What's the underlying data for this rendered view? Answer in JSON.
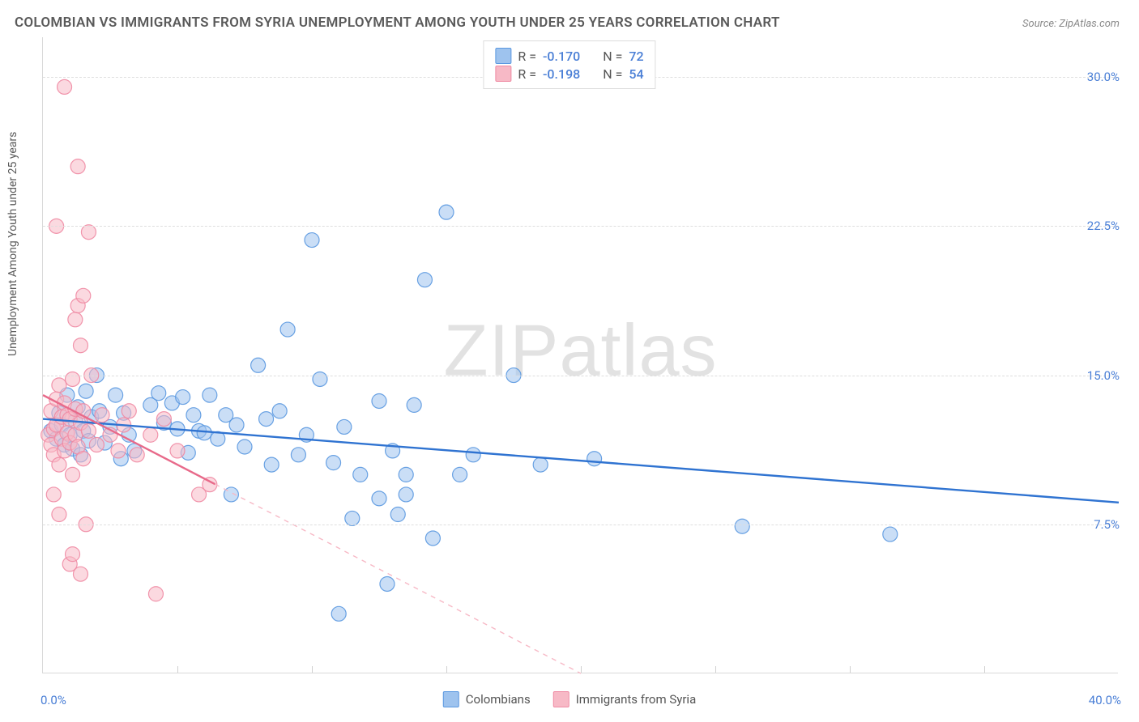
{
  "title": "COLOMBIAN VS IMMIGRANTS FROM SYRIA UNEMPLOYMENT AMONG YOUTH UNDER 25 YEARS CORRELATION CHART",
  "source": "Source: ZipAtlas.com",
  "ylabel": "Unemployment Among Youth under 25 years",
  "watermark_a": "ZIP",
  "watermark_b": "atlas",
  "chart": {
    "type": "scatter",
    "xlim": [
      0,
      40
    ],
    "ylim": [
      0,
      32
    ],
    "y_ticks": [
      7.5,
      15.0,
      22.5,
      30.0
    ],
    "y_tick_labels": [
      "7.5%",
      "15.0%",
      "22.5%",
      "30.0%"
    ],
    "x_origin_label": "0.0%",
    "x_max_label": "40.0%",
    "x_minor_ticks": [
      5,
      10,
      15,
      20,
      25,
      30,
      35
    ],
    "background": "#ffffff",
    "grid_color": "#dedede",
    "axis_color": "#d9d9d9",
    "tick_label_color": "#4a7fd6",
    "marker_radius": 9,
    "marker_opacity": 0.55,
    "marker_stroke_opacity": 0.9,
    "line_width": 2.4
  },
  "series": [
    {
      "name": "Colombians",
      "color_fill": "#9ec3ee",
      "color_stroke": "#5a98e0",
      "line_color": "#2f73d1",
      "R": "-0.170",
      "N": "72",
      "trend": {
        "x1": 0,
        "y1": 12.8,
        "x2": 40,
        "y2": 8.6,
        "solid_until_x": 40
      },
      "points": [
        [
          0.3,
          12.2
        ],
        [
          0.5,
          11.8
        ],
        [
          0.6,
          13.1
        ],
        [
          0.7,
          12.5
        ],
        [
          0.8,
          11.5
        ],
        [
          0.9,
          14.0
        ],
        [
          1.0,
          12.0
        ],
        [
          1.1,
          11.3
        ],
        [
          1.2,
          12.7
        ],
        [
          1.3,
          13.4
        ],
        [
          1.4,
          11.0
        ],
        [
          1.5,
          12.2
        ],
        [
          1.6,
          14.2
        ],
        [
          1.7,
          11.7
        ],
        [
          1.8,
          12.9
        ],
        [
          2.0,
          15.0
        ],
        [
          2.1,
          13.2
        ],
        [
          2.3,
          11.6
        ],
        [
          2.5,
          12.4
        ],
        [
          2.7,
          14.0
        ],
        [
          2.9,
          10.8
        ],
        [
          3.0,
          13.1
        ],
        [
          3.2,
          12.0
        ],
        [
          3.4,
          11.2
        ],
        [
          4.0,
          13.5
        ],
        [
          4.3,
          14.1
        ],
        [
          4.5,
          12.6
        ],
        [
          4.8,
          13.6
        ],
        [
          5.0,
          12.3
        ],
        [
          5.2,
          13.9
        ],
        [
          5.4,
          11.1
        ],
        [
          5.8,
          12.2
        ],
        [
          6.2,
          14.0
        ],
        [
          6.5,
          11.8
        ],
        [
          6.8,
          13.0
        ],
        [
          7.0,
          9.0
        ],
        [
          7.2,
          12.5
        ],
        [
          7.5,
          11.4
        ],
        [
          8.0,
          15.5
        ],
        [
          8.3,
          12.8
        ],
        [
          8.5,
          10.5
        ],
        [
          8.8,
          13.2
        ],
        [
          9.1,
          17.3
        ],
        [
          9.5,
          11.0
        ],
        [
          9.8,
          12.0
        ],
        [
          10.0,
          21.8
        ],
        [
          10.3,
          14.8
        ],
        [
          10.8,
          10.6
        ],
        [
          11.0,
          3.0
        ],
        [
          11.2,
          12.4
        ],
        [
          11.5,
          7.8
        ],
        [
          11.8,
          10.0
        ],
        [
          12.5,
          13.7
        ],
        [
          12.5,
          8.8
        ],
        [
          12.8,
          4.5
        ],
        [
          13.0,
          11.2
        ],
        [
          13.2,
          8.0
        ],
        [
          13.5,
          9.0
        ],
        [
          13.5,
          10.0
        ],
        [
          13.8,
          13.5
        ],
        [
          14.2,
          19.8
        ],
        [
          14.5,
          6.8
        ],
        [
          15.0,
          23.2
        ],
        [
          15.5,
          10.0
        ],
        [
          16.0,
          11.0
        ],
        [
          17.5,
          15.0
        ],
        [
          18.5,
          10.5
        ],
        [
          20.5,
          10.8
        ],
        [
          26.0,
          7.4
        ],
        [
          31.5,
          7.0
        ],
        [
          5.6,
          13.0
        ],
        [
          6.0,
          12.1
        ]
      ]
    },
    {
      "name": "Immigrants from Syria",
      "color_fill": "#f7b9c6",
      "color_stroke": "#ef8aa3",
      "line_color": "#e86a8a",
      "R": "-0.198",
      "N": "54",
      "trend": {
        "x1": 0,
        "y1": 14.0,
        "x2": 20,
        "y2": 0,
        "solid_until_x": 6.4
      },
      "points": [
        [
          0.2,
          12.0
        ],
        [
          0.3,
          11.5
        ],
        [
          0.3,
          13.2
        ],
        [
          0.4,
          12.3
        ],
        [
          0.4,
          11.0
        ],
        [
          0.5,
          13.8
        ],
        [
          0.5,
          12.5
        ],
        [
          0.6,
          10.5
        ],
        [
          0.6,
          14.5
        ],
        [
          0.7,
          11.8
        ],
        [
          0.7,
          12.9
        ],
        [
          0.8,
          13.6
        ],
        [
          0.8,
          11.2
        ],
        [
          0.9,
          12.1
        ],
        [
          0.9,
          13.0
        ],
        [
          1.0,
          11.6
        ],
        [
          1.0,
          12.8
        ],
        [
          1.1,
          10.0
        ],
        [
          1.1,
          14.8
        ],
        [
          1.2,
          12.0
        ],
        [
          1.2,
          13.3
        ],
        [
          1.3,
          11.4
        ],
        [
          1.4,
          12.6
        ],
        [
          1.5,
          13.2
        ],
        [
          1.5,
          10.8
        ],
        [
          1.6,
          7.5
        ],
        [
          1.7,
          12.2
        ],
        [
          1.8,
          15.0
        ],
        [
          1.2,
          17.8
        ],
        [
          1.3,
          18.5
        ],
        [
          1.4,
          16.5
        ],
        [
          1.5,
          19.0
        ],
        [
          0.5,
          22.5
        ],
        [
          0.8,
          29.5
        ],
        [
          1.3,
          25.5
        ],
        [
          1.7,
          22.2
        ],
        [
          0.4,
          9.0
        ],
        [
          0.6,
          8.0
        ],
        [
          1.0,
          5.5
        ],
        [
          1.1,
          6.0
        ],
        [
          1.4,
          5.0
        ],
        [
          2.0,
          11.5
        ],
        [
          2.2,
          13.0
        ],
        [
          2.5,
          12.0
        ],
        [
          2.8,
          11.2
        ],
        [
          3.0,
          12.5
        ],
        [
          3.2,
          13.2
        ],
        [
          3.5,
          11.0
        ],
        [
          4.0,
          12.0
        ],
        [
          4.2,
          4.0
        ],
        [
          4.5,
          12.8
        ],
        [
          5.0,
          11.2
        ],
        [
          5.8,
          9.0
        ],
        [
          6.2,
          9.5
        ]
      ]
    }
  ],
  "legend_top": {
    "r_label": "R =",
    "n_label": "N ="
  },
  "legend_bottom": {
    "items": [
      "Colombians",
      "Immigrants from Syria"
    ]
  }
}
